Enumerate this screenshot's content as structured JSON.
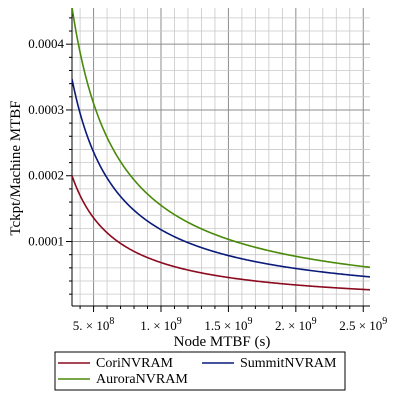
{
  "chart_data": {
    "type": "line",
    "xlabel": "Node MTBF (s)",
    "ylabel": "Tckpt/Machine MTBF",
    "xlim": [
      340000000,
      2550000000
    ],
    "ylim": [
      2e-06,
      0.000455
    ],
    "grid": true,
    "legend_position": "bottom",
    "x_ticks": [
      {
        "value": 500000000,
        "label": "5. × 10",
        "exp": "8"
      },
      {
        "value": 1000000000,
        "label": "1. × 10",
        "exp": "9"
      },
      {
        "value": 1500000000,
        "label": "1.5 × 10",
        "exp": "9"
      },
      {
        "value": 2000000000,
        "label": "2. × 10",
        "exp": "9"
      },
      {
        "value": 2500000000,
        "label": "2.5 × 10",
        "exp": "9"
      }
    ],
    "y_ticks": [
      {
        "value": 0.0001,
        "label": "0.0001"
      },
      {
        "value": 0.0002,
        "label": "0.0002"
      },
      {
        "value": 0.0003,
        "label": "0.0003"
      },
      {
        "value": 0.0004,
        "label": "0.0004"
      }
    ],
    "series": [
      {
        "name": "CoriNVRAM",
        "color": "#8b0a1e",
        "k": 68000,
        "x_start": 340000000
      },
      {
        "name": "SummitNVRAM",
        "color": "#0a1a7a",
        "k": 118000,
        "x_start": 340000000
      },
      {
        "name": "AuroraNVRAM",
        "color": "#4a8a0a",
        "k": 155000,
        "x_start": 340000000
      }
    ]
  }
}
